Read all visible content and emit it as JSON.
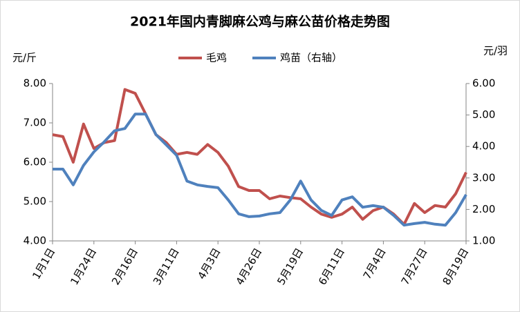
{
  "chart_data": {
    "type": "line",
    "title": "2021年国内青脚麻公鸡与麻公苗价格走势图",
    "y_label": "元/斤",
    "y2_label": "元/羽",
    "categories": [
      "1月1日",
      null,
      null,
      null,
      "1月24日",
      null,
      null,
      null,
      "2月16日",
      null,
      null,
      null,
      "3月11日",
      null,
      null,
      null,
      "4月3日",
      null,
      null,
      null,
      "4月26日",
      null,
      null,
      null,
      "5月19日",
      null,
      null,
      null,
      "6月11日",
      null,
      null,
      null,
      "7月4日",
      null,
      null,
      null,
      "7月27日",
      null,
      null,
      null,
      "8月19日"
    ],
    "series": [
      {
        "name": "毛鸡",
        "color": "#c0504d",
        "values": [
          6.7,
          6.65,
          6.0,
          6.97,
          6.35,
          6.5,
          6.55,
          7.85,
          7.75,
          7.23,
          6.7,
          6.5,
          6.2,
          6.25,
          6.2,
          6.45,
          6.25,
          5.9,
          5.38,
          5.28,
          5.28,
          5.07,
          5.14,
          5.1,
          5.07,
          4.86,
          4.68,
          4.6,
          4.68,
          4.86,
          4.55,
          4.77,
          4.86,
          4.68,
          4.42,
          4.95,
          4.72,
          4.9,
          4.86,
          5.2,
          5.74
        ]
      },
      {
        "name": "鸡苗（右轴）",
        "color": "#4f81bd",
        "axis": "y2",
        "values": [
          3.28,
          3.28,
          2.78,
          3.4,
          3.83,
          4.15,
          4.5,
          4.57,
          5.03,
          5.03,
          4.38,
          4.05,
          3.72,
          2.9,
          2.78,
          2.73,
          2.69,
          2.3,
          1.86,
          1.77,
          1.79,
          1.86,
          1.9,
          2.3,
          2.9,
          2.3,
          1.97,
          1.81,
          2.3,
          2.4,
          2.07,
          2.12,
          2.07,
          1.81,
          1.5,
          1.55,
          1.59,
          1.53,
          1.5,
          1.9,
          2.47
        ]
      }
    ],
    "ylim": [
      4,
      8
    ],
    "yticks": [
      {
        "value": 4,
        "label": "4.00"
      },
      {
        "value": 5,
        "label": "5.00"
      },
      {
        "value": 6,
        "label": "6.00"
      },
      {
        "value": 7,
        "label": "7.00"
      },
      {
        "value": 8,
        "label": "8.00"
      }
    ],
    "y2lim": [
      1,
      6
    ],
    "y2ticks": [
      {
        "value": 1,
        "label": "1.00"
      },
      {
        "value": 2,
        "label": "2.00"
      },
      {
        "value": 3,
        "label": "3.00"
      },
      {
        "value": 4,
        "label": "4.00"
      },
      {
        "value": 5,
        "label": "5.00"
      },
      {
        "value": 6,
        "label": "6.00"
      }
    ],
    "grid": false,
    "legend": "top"
  }
}
